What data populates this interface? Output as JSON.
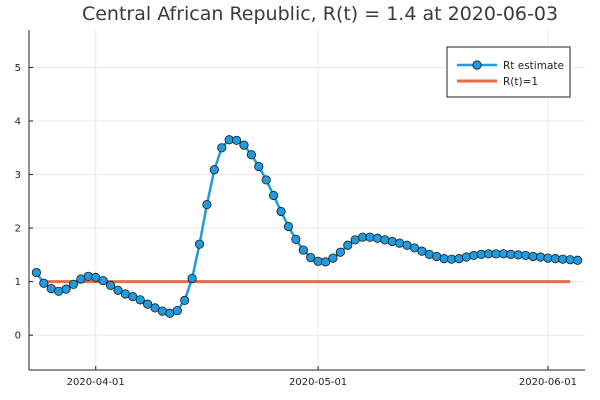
{
  "chart_data": {
    "type": "line",
    "title": "Central African Republic, R(t) = 1.4 at 2020-06-03",
    "xlabel": "",
    "ylabel": "",
    "xlim": [
      "2020-03-23",
      "2020-06-06"
    ],
    "ylim": [
      -0.65,
      5.7
    ],
    "x_ticks": [
      "2020-04-01",
      "2020-05-01",
      "2020-06-01"
    ],
    "y_ticks": [
      0,
      1,
      2,
      3,
      4,
      5
    ],
    "grid": true,
    "legend_position": "top-right",
    "x_start": "2020-03-24",
    "series": [
      {
        "name": "Rt estimate",
        "color": "#1f9bde",
        "marker": "circle",
        "values": [
          1.17,
          0.97,
          0.87,
          0.82,
          0.86,
          0.95,
          1.05,
          1.1,
          1.08,
          1.02,
          0.93,
          0.84,
          0.77,
          0.72,
          0.66,
          0.58,
          0.51,
          0.45,
          0.41,
          0.46,
          0.65,
          1.06,
          1.7,
          2.44,
          3.09,
          3.5,
          3.65,
          3.64,
          3.55,
          3.37,
          3.15,
          2.9,
          2.61,
          2.31,
          2.03,
          1.79,
          1.59,
          1.45,
          1.38,
          1.37,
          1.44,
          1.55,
          1.68,
          1.78,
          1.83,
          1.83,
          1.81,
          1.78,
          1.75,
          1.72,
          1.68,
          1.63,
          1.57,
          1.51,
          1.47,
          1.43,
          1.42,
          1.43,
          1.46,
          1.49,
          1.51,
          1.52,
          1.52,
          1.52,
          1.51,
          1.5,
          1.49,
          1.47,
          1.46,
          1.44,
          1.43,
          1.42,
          1.41,
          1.4
        ]
      },
      {
        "name": "R(t)=1",
        "color": "#e26f46",
        "x": [
          "2020-03-25",
          "2020-06-04"
        ],
        "values": [
          1,
          1
        ]
      }
    ]
  }
}
